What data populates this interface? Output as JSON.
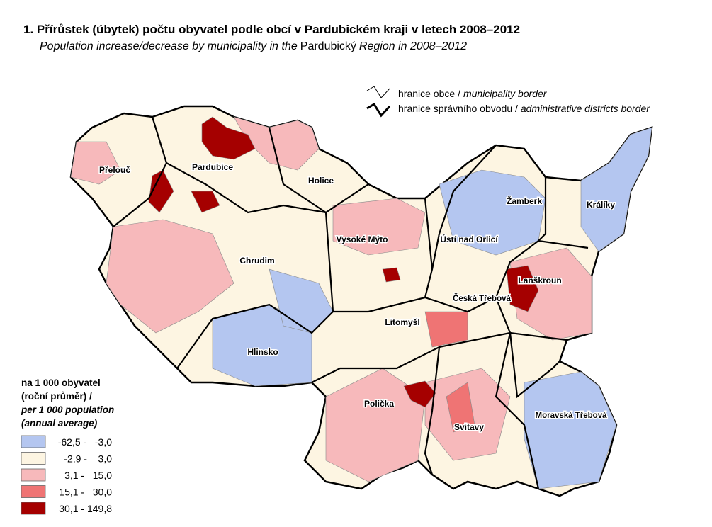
{
  "header": {
    "title": "1. Přírůstek (úbytek) počtu obyvatel podle obcí v Pardubickém kraji v letech 2008–2012",
    "subtitle": [
      "Population increase/decrease by municipality in the",
      "Pardubický",
      "Region in 2008–2012"
    ]
  },
  "border_legend": [
    {
      "czech": "hranice obce /",
      "english": "municipality border"
    },
    {
      "czech": "hranice správního obvodu /",
      "english": "administrative districts border"
    }
  ],
  "legend": {
    "heading": [
      "na 1 000 obyvatel",
      "(roční průměr) /"
    ],
    "heading_en": [
      "per 1 000 population",
      "(annual average)"
    ],
    "classes": [
      {
        "label": "-62,5 -   -3,0",
        "color": "#b4c6f0"
      },
      {
        "label": "-2,9 -    3,0",
        "color": "#fdf5e2"
      },
      {
        "label": "3,1 -   15,0",
        "color": "#f7b9bb"
      },
      {
        "label": "15,1 -   30,0",
        "color": "#ef7474"
      },
      {
        "label": "30,1 - 149,8",
        "color": "#a50000"
      }
    ]
  },
  "districts": [
    "Přelouč",
    "Pardubice",
    "Holice",
    "Žamberk",
    "Králíky",
    "Vysoké Mýto",
    "Ústí nad Orlicí",
    "Chrudim",
    "Lanškroun",
    "Česká Třebová",
    "Litomyšl",
    "Hlinsko",
    "Polička",
    "Svitavy",
    "Moravská Třebová"
  ]
}
